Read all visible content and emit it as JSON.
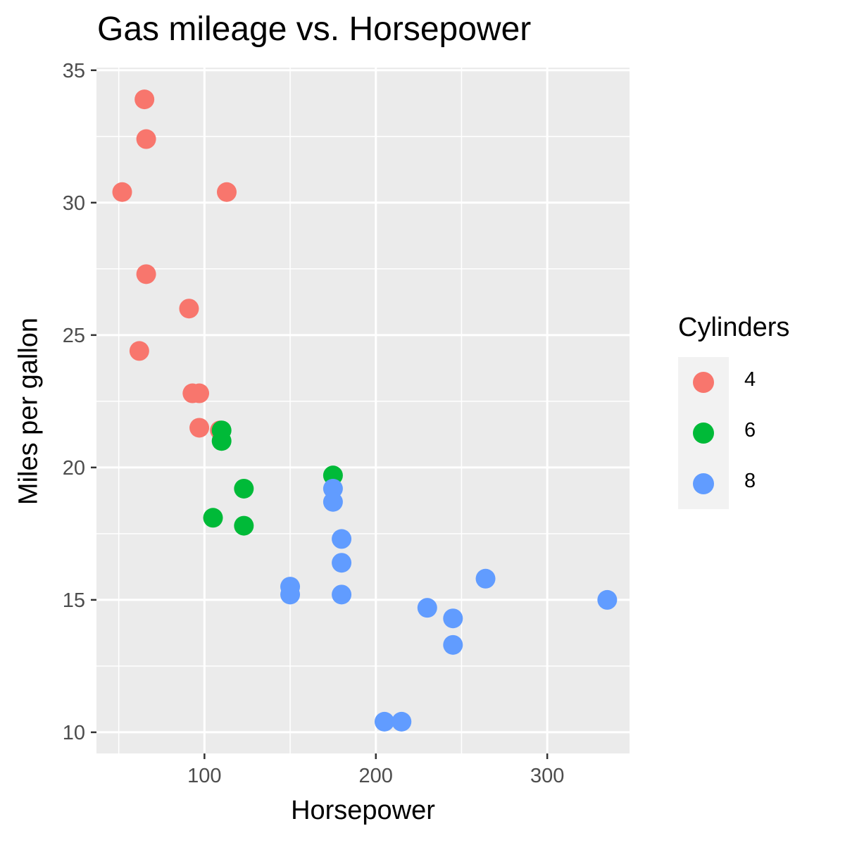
{
  "chart_data": {
    "type": "scatter",
    "title": "Gas mileage vs. Horsepower",
    "xlabel": "Horsepower",
    "ylabel": "Miles per gallon",
    "xlim": [
      37,
      348
    ],
    "ylim": [
      9.2,
      35.1
    ],
    "x_ticks": [
      100,
      200,
      300
    ],
    "x_minor_ticks": [
      50,
      150,
      250
    ],
    "y_ticks": [
      10,
      15,
      20,
      25,
      30,
      35
    ],
    "y_minor_ticks": [
      12.5,
      17.5,
      22.5,
      27.5,
      32.5
    ],
    "grid": true,
    "legend": {
      "title": "Cylinders",
      "position": "right"
    },
    "series": [
      {
        "name": "4",
        "color": "#F8766D",
        "points": [
          [
            65,
            33.9
          ],
          [
            66,
            32.4
          ],
          [
            52,
            30.4
          ],
          [
            113,
            30.4
          ],
          [
            66,
            27.3
          ],
          [
            91,
            26.0
          ],
          [
            62,
            24.4
          ],
          [
            93,
            22.8
          ],
          [
            97,
            22.8
          ],
          [
            97,
            21.5
          ],
          [
            109,
            21.4
          ]
        ]
      },
      {
        "name": "6",
        "color": "#00BA38",
        "points": [
          [
            110,
            21.4
          ],
          [
            110,
            21.0
          ],
          [
            175,
            19.7
          ],
          [
            123,
            19.2
          ],
          [
            105,
            18.1
          ],
          [
            123,
            17.8
          ]
        ]
      },
      {
        "name": "8",
        "color": "#619CFF",
        "points": [
          [
            175,
            19.2
          ],
          [
            175,
            18.7
          ],
          [
            180,
            17.3
          ],
          [
            180,
            16.4
          ],
          [
            264,
            15.8
          ],
          [
            150,
            15.5
          ],
          [
            150,
            15.2
          ],
          [
            180,
            15.2
          ],
          [
            335,
            15.0
          ],
          [
            230,
            14.7
          ],
          [
            245,
            14.3
          ],
          [
            245,
            13.3
          ],
          [
            205,
            10.4
          ],
          [
            215,
            10.4
          ]
        ]
      }
    ]
  }
}
